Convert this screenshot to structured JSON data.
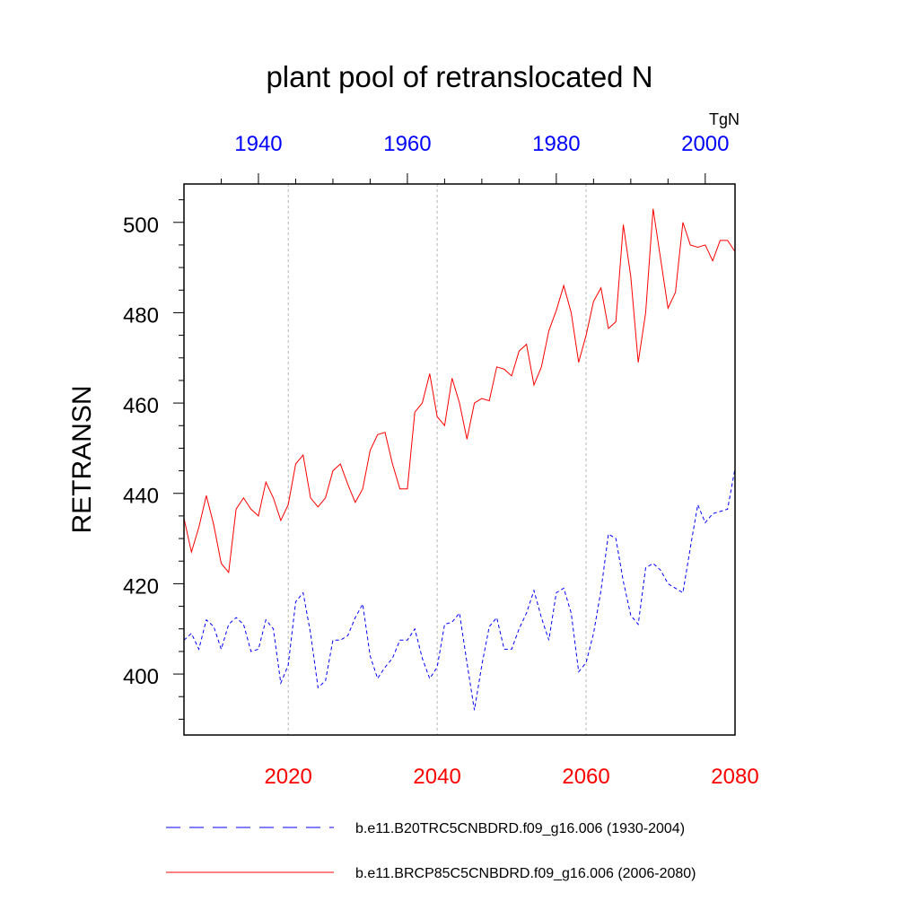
{
  "chart_data": {
    "type": "line",
    "title": "plant pool of retranslocated N",
    "ylabel": "RETRANSN",
    "units": "TgN",
    "ylim": [
      386.5,
      508.5
    ],
    "y_ticks": [
      "400",
      "420",
      "440",
      "460",
      "480",
      "500"
    ],
    "x_bottom": {
      "range": [
        2006,
        2080
      ],
      "tick_labels": [
        "2020",
        "2040",
        "2060",
        "2080"
      ],
      "color": "#ff0000"
    },
    "x_top": {
      "range": [
        1930,
        2004
      ],
      "tick_labels": [
        "1940",
        "1960",
        "1980",
        "2000"
      ],
      "color": "#0000ff"
    },
    "grid": "vertical dotted lines at bottom-axis major ticks",
    "legend_position": "bottom",
    "series": [
      {
        "name": "b.e11.B20TRC5CNBDRD.f09_g16.006 (1930-2004)",
        "color": "#0000ff",
        "dash": "dashed",
        "x_start": 1930,
        "values": [
          407.5,
          409.0,
          405.5,
          412.0,
          410.5,
          405.5,
          411.0,
          412.5,
          411.0,
          405.0,
          405.5,
          412.0,
          410.0,
          398.0,
          402.0,
          416.0,
          418.0,
          409.0,
          397.0,
          398.5,
          407.5,
          407.5,
          408.5,
          412.5,
          415.5,
          404.0,
          399.0,
          401.5,
          403.5,
          407.5,
          407.5,
          410.0,
          403.5,
          399.0,
          401.5,
          411.0,
          411.5,
          413.5,
          402.5,
          392.0,
          402.0,
          410.5,
          412.5,
          405.5,
          405.5,
          410.0,
          413.5,
          418.5,
          412.5,
          407.5,
          418.0,
          419.0,
          413.5,
          400.5,
          402.5,
          409.0,
          418.5,
          431.0,
          430.0,
          420.5,
          413.0,
          411.0,
          423.5,
          424.5,
          423.0,
          420.0,
          419.0,
          418.0,
          428.0,
          437.5,
          433.5,
          435.5,
          436.0,
          436.5,
          445.5
        ]
      },
      {
        "name": "b.e11.BRCP85C5CNBDRD.f09_g16.006 (2006-2080)",
        "color": "#ff0000",
        "dash": "solid",
        "x_start": 2006,
        "values": [
          434.5,
          427.0,
          432.5,
          439.5,
          433.0,
          424.5,
          422.5,
          436.5,
          439.0,
          436.5,
          435.0,
          442.5,
          439.0,
          434.0,
          437.5,
          446.5,
          448.5,
          439.0,
          437.0,
          439.0,
          445.0,
          446.5,
          442.0,
          438.0,
          441.0,
          449.5,
          453.0,
          453.5,
          446.5,
          441.0,
          441.0,
          458.0,
          460.0,
          466.5,
          457.0,
          455.0,
          465.5,
          460.0,
          452.0,
          460.0,
          461.0,
          460.5,
          468.0,
          467.5,
          466.0,
          471.5,
          473.0,
          464.0,
          468.0,
          476.0,
          480.5,
          486.0,
          480.0,
          469.0,
          475.0,
          482.5,
          485.5,
          476.5,
          478.0,
          499.5,
          488.0,
          469.0,
          480.0,
          503.0,
          492.0,
          481.0,
          484.5,
          500.0,
          495.0,
          494.5,
          495.0,
          491.5,
          496.0,
          496.0,
          493.5
        ]
      }
    ]
  }
}
